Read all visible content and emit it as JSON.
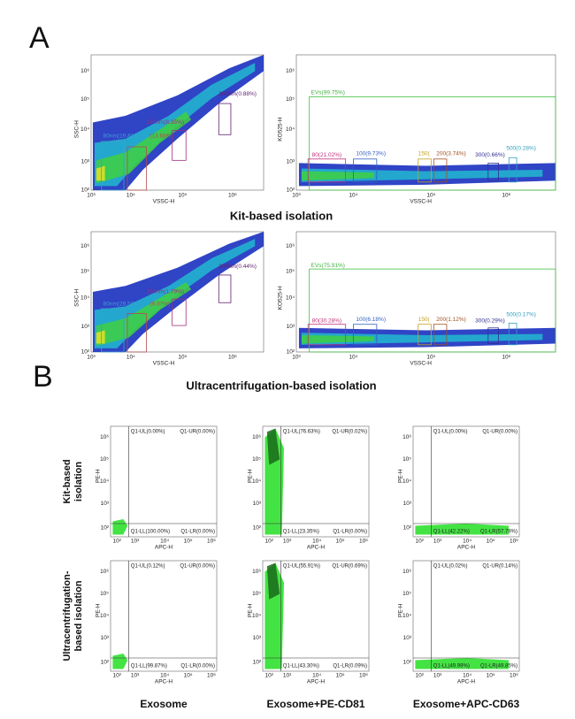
{
  "panel_a": {
    "label": "A",
    "scatter_x_ticks": [
      "10³",
      "10⁴",
      "10⁵",
      "10⁶"
    ],
    "fluor_x_ticks": [
      "10³",
      "10⁴",
      "10⁵",
      "10⁶"
    ],
    "y_ticks": [
      "10²",
      "10³",
      "10⁴",
      "10⁵",
      "10⁶"
    ],
    "rows": [
      {
        "caption": "Kit-based isolation",
        "scatter": {
          "y_label": "SSC-H",
          "x_label": "VSSC-H",
          "gates": [
            "80nm(19.81%)",
            "(13.68%)",
            "150nm(8.35%)",
            "300nm(0.88%)"
          ]
        },
        "fluor": {
          "y_label": "KO525-H",
          "x_label": "VSSC-H",
          "ev_gate": "EVs(99.75%)",
          "gates": [
            "80(21.02%)",
            "100(9.73%)",
            "150(",
            "200(3.74%)",
            "300(0.66%)",
            "500(0.28%)"
          ]
        }
      },
      {
        "caption": "Ultracentrifugation-based isolation",
        "scatter": {
          "y_label": "SSC-H",
          "x_label": "VSSC-H",
          "gates": [
            "80nm(29.58%)",
            "(9.37%)",
            "150nm(1.79%)",
            "300nm(0.44%)"
          ]
        },
        "fluor": {
          "y_label": "KO525-H",
          "x_label": "VSSC-H",
          "ev_gate": "EVs(75.91%)",
          "gates": [
            "80(30.28%)",
            "100(6.18%)",
            "150(",
            "200(1.12%)",
            "300(0.29%)",
            "500(0.17%)"
          ]
        }
      }
    ]
  },
  "panel_b": {
    "label": "B",
    "row_labels": [
      [
        "Kit-based",
        "isolation"
      ],
      [
        "Ultracentrifugation-",
        "based isolation"
      ]
    ],
    "columns": [
      "Exosome",
      "Exosome+PE-CD81",
      "Exosome+APC-CD63"
    ],
    "x_label": "APC-H",
    "y_label": "PE-H",
    "ticks": [
      "10²",
      "10³",
      "10⁴",
      "10⁵",
      "10⁶"
    ],
    "plots": [
      [
        {
          "ul": "Q1-UL(0.00%)",
          "ur": "Q1-UR(0.00%)",
          "ll": "Q1-LL(100.00%)",
          "lr": "Q1-LR(0.00%)"
        },
        {
          "ul": "Q1-UL(76.63%)",
          "ur": "Q1-UR(0.02%)",
          "ll": "Q1-LL(23.35%)",
          "lr": "Q1-LR(0.00%)"
        },
        {
          "ul": "Q1-UL(0.00%)",
          "ur": "Q1-UR(0.00%)",
          "ll": "Q1-LL(42.22%)",
          "lr": "Q1-LR(57.78%)"
        }
      ],
      [
        {
          "ul": "Q1-UL(0.12%)",
          "ur": "Q1-UR(0.00%)",
          "ll": "Q1-LL(99.87%)",
          "lr": "Q1-LR(0.00%)"
        },
        {
          "ul": "Q1-UL(55.91%)",
          "ur": "Q1-UR(0.69%)",
          "ll": "Q1-LL(43.30%)",
          "lr": "Q1-LR(0.09%)"
        },
        {
          "ul": "Q1-UL(0.02%)",
          "ur": "Q1-UR(0.14%)",
          "ll": "Q1-LL(49.99%)",
          "lr": "Q1-LR(49.85%)"
        }
      ]
    ]
  }
}
